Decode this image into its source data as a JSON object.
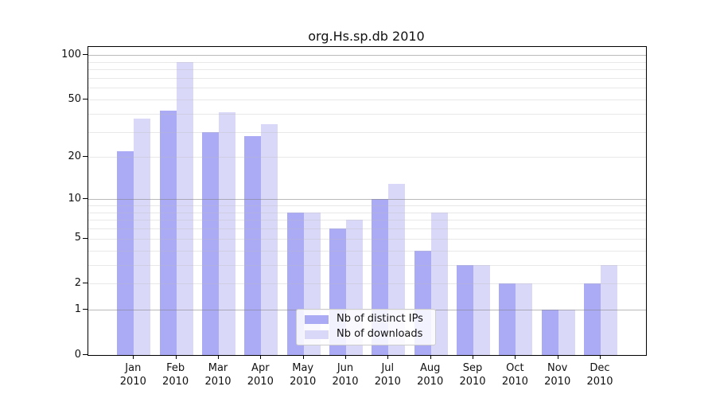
{
  "title": "org.Hs.sp.db 2010",
  "colors": {
    "distinct_ips": "#aaaaf5",
    "downloads": "#d9d8f8",
    "axis": "#000000",
    "major_grid": "#828282",
    "minor_grid": "#bebebe",
    "legend_border": "#cccccc",
    "legend_bg": "#ffffff"
  },
  "legend": {
    "items": [
      {
        "label": "Nb of distinct IPs",
        "color_key": "distinct_ips"
      },
      {
        "label": "Nb of downloads",
        "color_key": "downloads"
      }
    ]
  },
  "y_axis": {
    "tick_labels": [
      "100",
      "50",
      "20",
      "10",
      "5",
      "2",
      "1",
      "0"
    ]
  },
  "x_axis": {
    "year": "2010",
    "months": [
      "Jan",
      "Feb",
      "Mar",
      "Apr",
      "May",
      "Jun",
      "Jul",
      "Aug",
      "Sep",
      "Oct",
      "Nov",
      "Dec"
    ]
  },
  "chart_data": {
    "type": "bar",
    "title": "org.Hs.sp.db 2010",
    "categories": [
      "Jan 2010",
      "Feb 2010",
      "Mar 2010",
      "Apr 2010",
      "May 2010",
      "Jun 2010",
      "Jul 2010",
      "Aug 2010",
      "Sep 2010",
      "Oct 2010",
      "Nov 2010",
      "Dec 2010"
    ],
    "series": [
      {
        "name": "Nb of distinct IPs",
        "color": "#aaaaf5",
        "values": [
          22,
          42,
          30,
          28,
          8,
          6,
          10,
          4,
          3,
          2,
          1,
          2
        ]
      },
      {
        "name": "Nb of downloads",
        "color": "#d9d8f8",
        "values": [
          37,
          90,
          41,
          34,
          8,
          7,
          13,
          8,
          3,
          2,
          1,
          3
        ]
      }
    ],
    "xlabel": "",
    "ylabel": "",
    "yscale": "log10(1+y)",
    "ylim": [
      0,
      115
    ],
    "yticks": [
      0,
      1,
      2,
      5,
      10,
      20,
      50,
      100
    ],
    "major_gridlines": [
      1,
      10,
      100
    ],
    "minor_gridlines": [
      2,
      3,
      4,
      5,
      6,
      7,
      8,
      9,
      20,
      30,
      40,
      50,
      60,
      70,
      80,
      90
    ],
    "grid": true,
    "legend_position": "bottom-center-inside"
  }
}
